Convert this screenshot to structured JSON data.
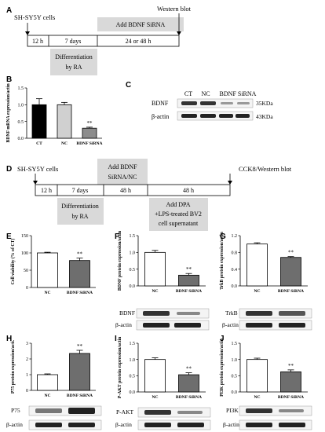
{
  "colors": {
    "black": "#000000",
    "gray_box": "#d9d9d9",
    "bar_white": "#ffffff",
    "bar_lightgray": "#d0d0d0",
    "bar_gray": "#8c8c8c",
    "bar_darkgray": "#6e6e6e"
  },
  "panels": {
    "A": {
      "letter": "A",
      "start": "SH-SY5Y cells",
      "end": "Western blot",
      "seg1": "12 h",
      "seg2": "7 days",
      "seg3": "24 or 48 h",
      "top_box": "Add BDNF SiRNA",
      "bottom_box_line1": "Differentiation",
      "bottom_box_line2": "by RA"
    },
    "B": {
      "letter": "B",
      "ylabel": "BDNF mRNA expression/actin",
      "sig": "**"
    },
    "C": {
      "letter": "C",
      "headers": [
        "CT",
        "NC",
        "BDNF SiRNA"
      ],
      "rows": [
        {
          "label": "BDNF",
          "size": "35KDa"
        },
        {
          "label": "β-actin",
          "size": "43KDa"
        }
      ]
    },
    "D": {
      "letter": "D",
      "start": "SH-SY5Y cells",
      "end": "CCK8/Western blot",
      "seg1": "12 h",
      "seg2": "7 days",
      "seg3": "48 h",
      "seg4": "48 h",
      "top_box_line1": "Add BDNF",
      "top_box_line2": "SiRNA/NC",
      "bottom_box_line1": "Differentiation",
      "bottom_box_line2": "by RA",
      "bottom_box2_line1": "Add DPA",
      "bottom_box2_line2": "+LPS-treated BV2",
      "bottom_box2_line3": "cell supernatant"
    },
    "E": {
      "letter": "E",
      "ylabel": "Cell viability (% of CT)",
      "sig": "**"
    },
    "F": {
      "letter": "F",
      "ylabel": "BDNF protein expression/actin",
      "sig": "**",
      "blot_top": "BDNF",
      "blot_bottom": "β-actin"
    },
    "G": {
      "letter": "G",
      "ylabel": "TrkB protein expression/actin",
      "sig": "**",
      "blot_top": "TrkB",
      "blot_bottom": "β-actin"
    },
    "H": {
      "letter": "H",
      "ylabel": "P75 protein expression/acti.",
      "sig": "**",
      "blot_top": "P75",
      "blot_bottom": "β-actin"
    },
    "I": {
      "letter": "I",
      "ylabel": "P-AKT protein expression/actin",
      "sig": "**",
      "blot_top": "P-AKT",
      "blot_bottom": "β-actin"
    },
    "J": {
      "letter": "J",
      "ylabel": "PI3K protein expression/actin",
      "sig": "**",
      "blot_top": "PI3K",
      "blot_bottom": "β-actin"
    }
  },
  "chart_data": [
    {
      "id": "B",
      "type": "bar",
      "categories": [
        "CT",
        "NC",
        "BDNF SiRNA"
      ],
      "values": [
        1.0,
        1.0,
        0.3
      ],
      "errors": [
        0.18,
        0.07,
        0.03
      ],
      "ylabel": "BDNF mRNA expression/actin",
      "ylim": [
        0,
        1.5
      ],
      "yticks": [
        "0.0",
        "0.5",
        "1.0",
        "1.5"
      ],
      "fills": [
        "#000000",
        "#d0d0d0",
        "#8c8c8c"
      ]
    },
    {
      "id": "E",
      "type": "bar",
      "categories": [
        "NC",
        "BDNF SiRNA"
      ],
      "values": [
        100,
        78
      ],
      "errors": [
        2,
        7
      ],
      "ylabel": "Cell viability (% of CT)",
      "ylim": [
        0,
        150
      ],
      "yticks": [
        "0",
        "50",
        "100",
        "150"
      ],
      "fills": [
        "#ffffff",
        "#6e6e6e"
      ]
    },
    {
      "id": "F",
      "type": "bar",
      "categories": [
        "NC",
        "BDNF SiRNA"
      ],
      "values": [
        1.0,
        0.32
      ],
      "errors": [
        0.06,
        0.05
      ],
      "ylabel": "BDNF protein expression/actin",
      "ylim": [
        0,
        1.5
      ],
      "yticks": [
        "0.0",
        "0.5",
        "1.0",
        "1.5"
      ],
      "fills": [
        "#ffffff",
        "#6e6e6e"
      ]
    },
    {
      "id": "G",
      "type": "bar",
      "categories": [
        "NC",
        "BDNF SiRNA"
      ],
      "values": [
        1.0,
        0.68
      ],
      "errors": [
        0.03,
        0.02
      ],
      "ylabel": "TrkB protein expression/actin",
      "ylim": [
        0,
        1.2
      ],
      "yticks": [
        "0.0",
        "0.4",
        "0.8",
        "1.2"
      ],
      "fills": [
        "#ffffff",
        "#6e6e6e"
      ]
    },
    {
      "id": "H",
      "type": "bar",
      "categories": [
        "NC",
        "BDNF SiRNA"
      ],
      "values": [
        1.0,
        2.35
      ],
      "errors": [
        0.05,
        0.2
      ],
      "ylabel": "P75 protein expression/acti.",
      "ylim": [
        0,
        3
      ],
      "yticks": [
        "0",
        "1",
        "2",
        "3"
      ],
      "fills": [
        "#ffffff",
        "#6e6e6e"
      ]
    },
    {
      "id": "I",
      "type": "bar",
      "categories": [
        "NC",
        "BDNF SiRNA"
      ],
      "values": [
        1.0,
        0.53
      ],
      "errors": [
        0.05,
        0.06
      ],
      "ylabel": "P-AKT protein expression/actin",
      "ylim": [
        0,
        1.5
      ],
      "yticks": [
        "0.0",
        "0.5",
        "1.0",
        "1.5"
      ],
      "fills": [
        "#ffffff",
        "#6e6e6e"
      ]
    },
    {
      "id": "J",
      "type": "bar",
      "categories": [
        "NC",
        "BDNF SiRNA"
      ],
      "values": [
        1.0,
        0.62
      ],
      "errors": [
        0.04,
        0.06
      ],
      "ylabel": "PI3K protein expression/actin",
      "ylim": [
        0,
        1.5
      ],
      "yticks": [
        "0.0",
        "0.5",
        "1.0",
        "1.5"
      ],
      "fills": [
        "#ffffff",
        "#6e6e6e"
      ]
    }
  ]
}
